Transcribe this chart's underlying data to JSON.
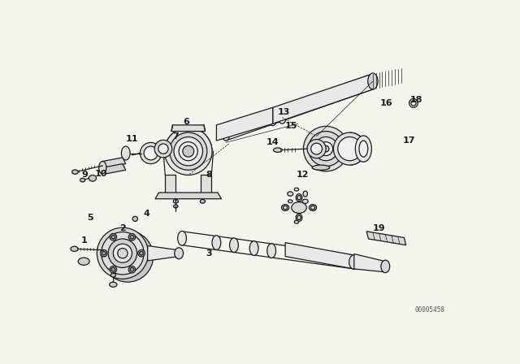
{
  "bg_color": "#f5f5f0",
  "line_color": "#1a1a1a",
  "lw_main": 0.9,
  "lw_thin": 0.5,
  "watermark": "00005458",
  "fig_width": 6.4,
  "fig_height": 4.48,
  "dpi": 100,
  "labels": [
    [
      "1",
      28,
      315
    ],
    [
      "2",
      90,
      295
    ],
    [
      "3",
      228,
      335
    ],
    [
      "4",
      128,
      272
    ],
    [
      "5",
      38,
      278
    ],
    [
      "6",
      192,
      125
    ],
    [
      "7",
      175,
      148
    ],
    [
      "8",
      228,
      210
    ],
    [
      "9",
      30,
      210
    ],
    [
      "10",
      55,
      208
    ],
    [
      "11",
      105,
      152
    ],
    [
      "12",
      378,
      210
    ],
    [
      "13",
      348,
      110
    ],
    [
      "14",
      330,
      158
    ],
    [
      "15",
      360,
      132
    ],
    [
      "16",
      512,
      95
    ],
    [
      "17",
      548,
      155
    ],
    [
      "18",
      560,
      90
    ],
    [
      "19",
      500,
      295
    ]
  ]
}
